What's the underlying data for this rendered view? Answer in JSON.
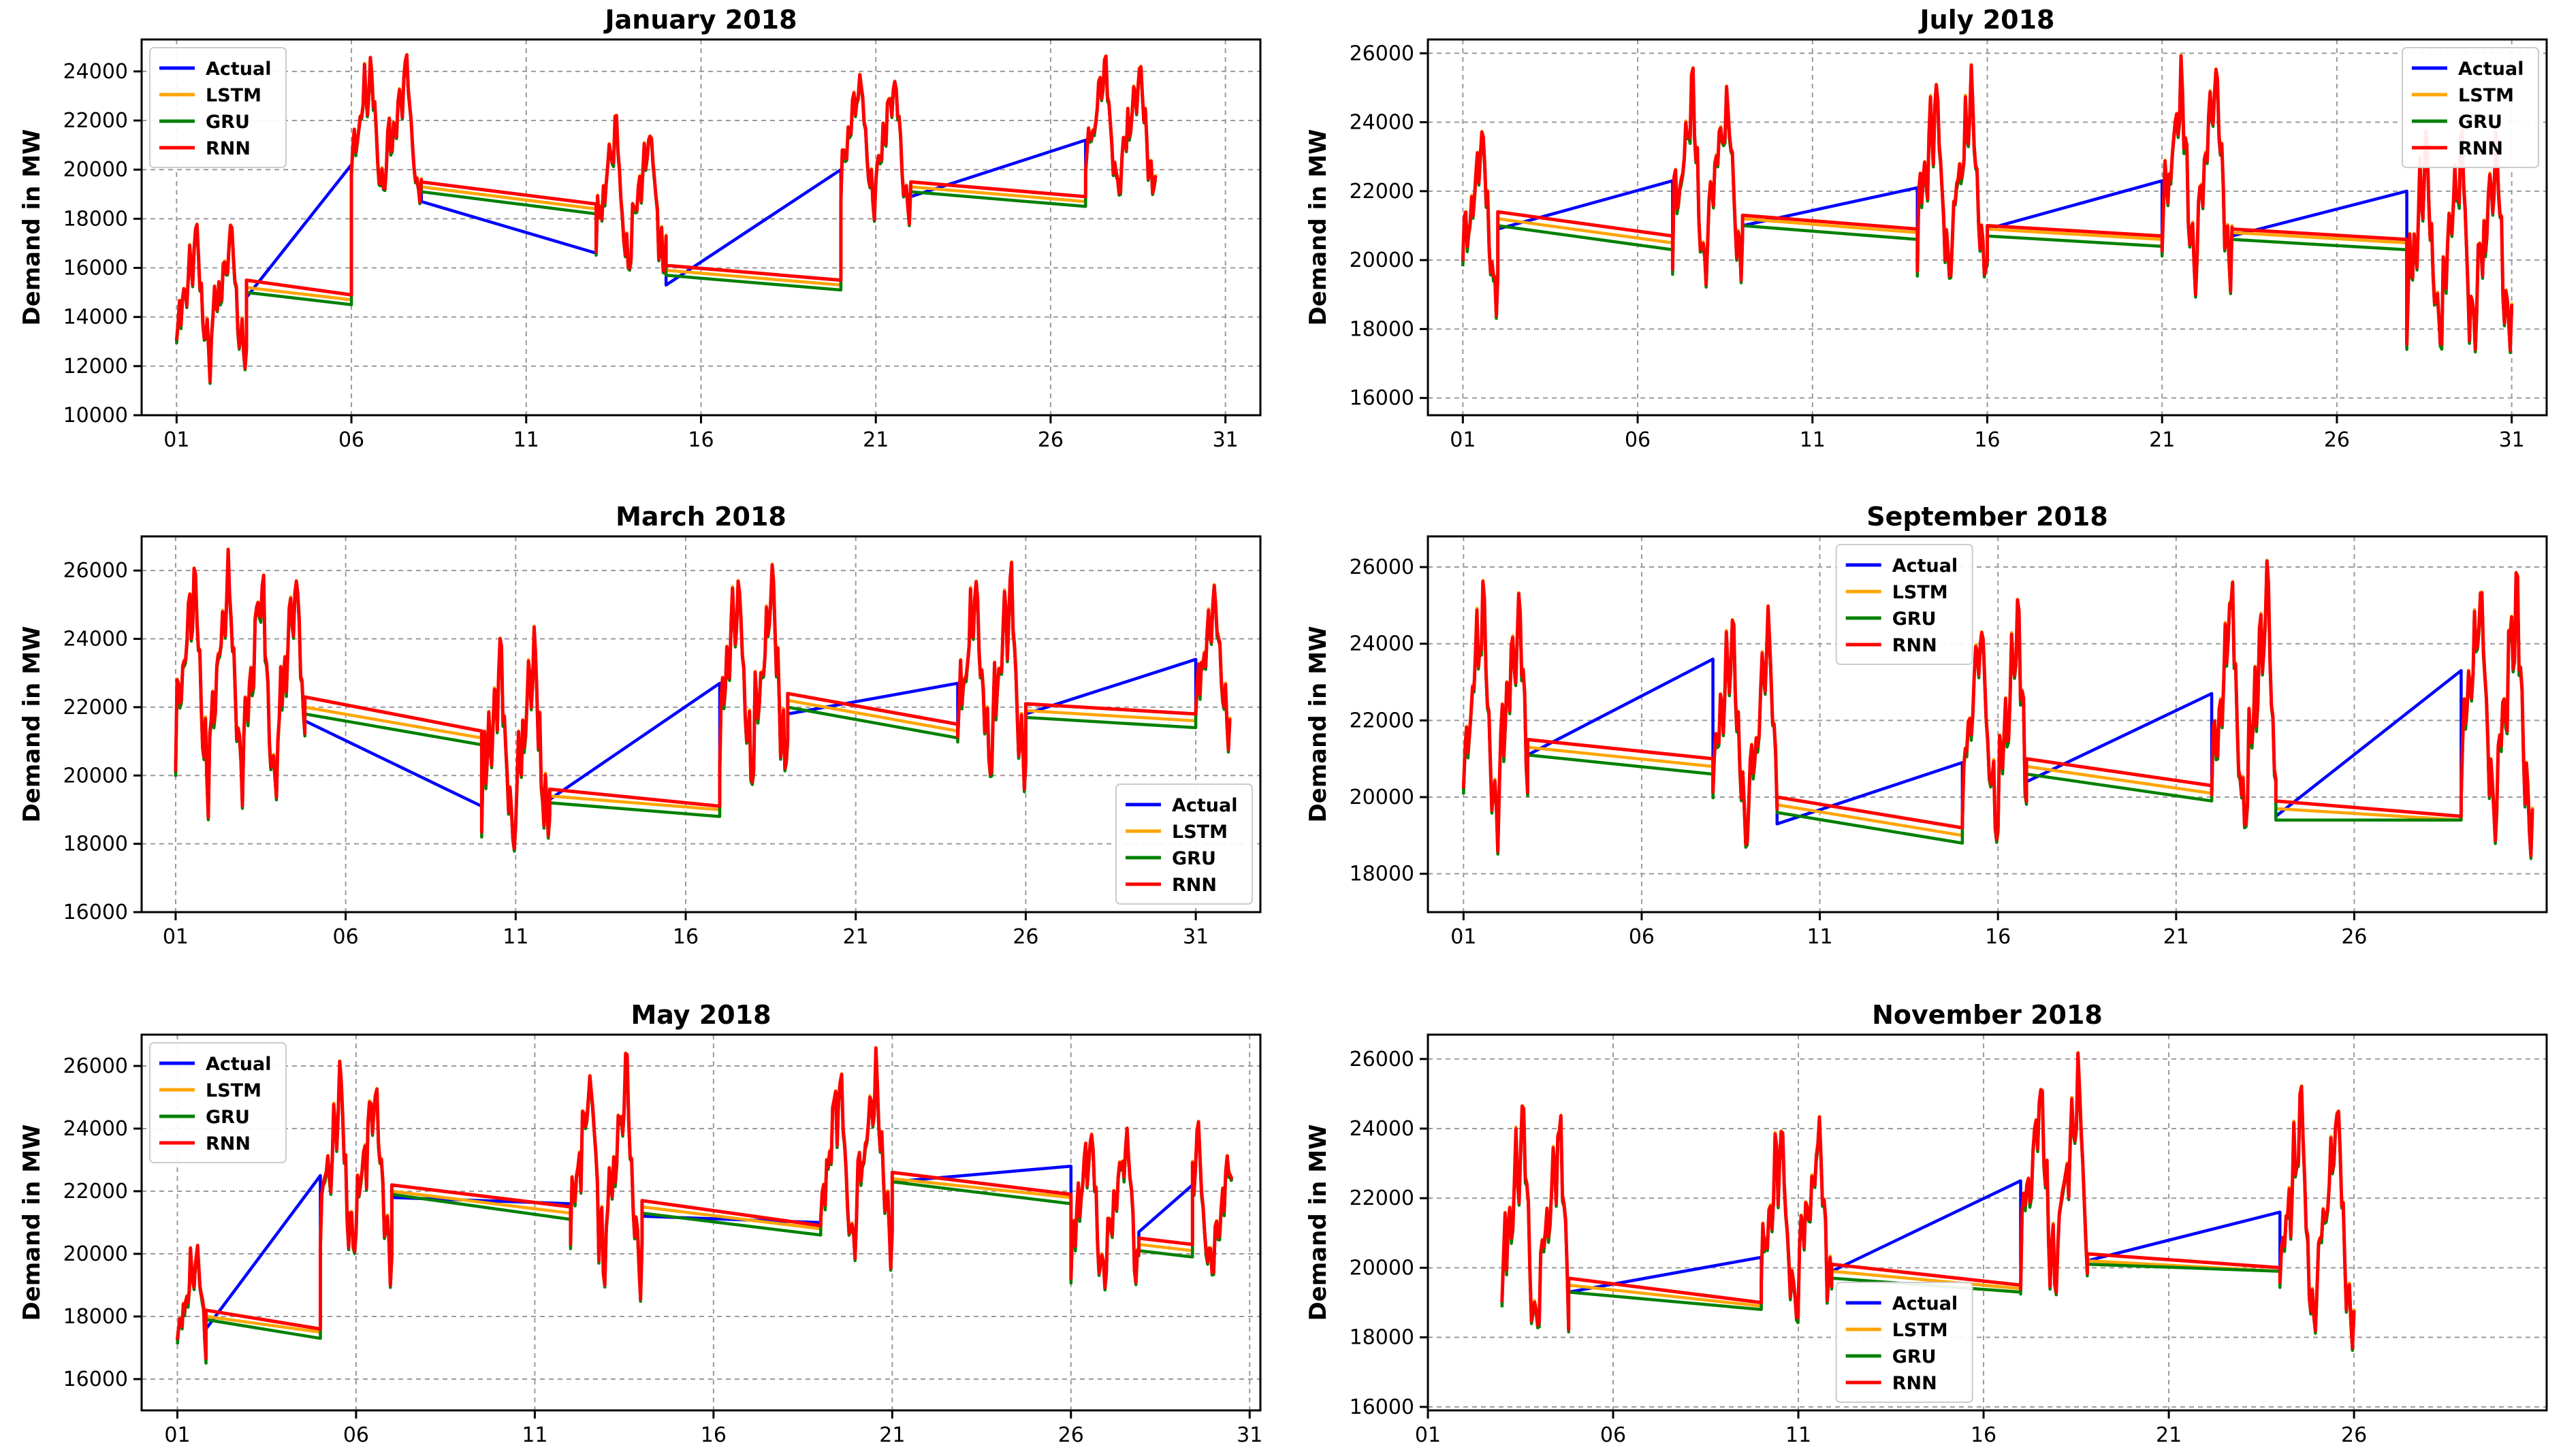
{
  "colors": {
    "Actual": "#0000ff",
    "LSTM": "#ffa500",
    "GRU": "#008000",
    "RNN": "#ff0000"
  },
  "chart_data": [
    {
      "type": "line",
      "title": "January 2018",
      "xlabel": "",
      "ylabel": "Demand in MW",
      "xlim": [
        -1,
        31
      ],
      "ylim": [
        10000,
        25300
      ],
      "xticks": [
        0,
        5,
        10,
        15,
        20,
        25,
        30
      ],
      "xtick_labels": [
        "01",
        "06",
        "11",
        "16",
        "21",
        "26",
        "31"
      ],
      "yticks": [
        10000,
        12000,
        14000,
        16000,
        18000,
        20000,
        22000,
        24000
      ],
      "ytick_labels": [
        "10000",
        "12000",
        "14000",
        "16000",
        "18000",
        "20000",
        "22000",
        "24000"
      ],
      "legend": {
        "entries": [
          "Actual",
          "LSTM",
          "GRU",
          "RNN"
        ],
        "loc": "upper-left"
      },
      "grid": true,
      "segments": [
        [
          0,
          2
        ],
        [
          5,
          7
        ],
        [
          12,
          14
        ],
        [
          19,
          21
        ],
        [
          26,
          28
        ]
      ],
      "gap_levels": {
        "Actual": [
          [
            14800,
            20200
          ],
          [
            18700,
            16600
          ],
          [
            15300,
            20000
          ],
          [
            18900,
            21200
          ]
        ],
        "LSTM": [
          [
            15200,
            14700
          ],
          [
            19300,
            18400
          ],
          [
            15900,
            15300
          ],
          [
            19300,
            18700
          ]
        ],
        "GRU": [
          [
            15000,
            14500
          ],
          [
            19100,
            18200
          ],
          [
            15700,
            15100
          ],
          [
            19100,
            18500
          ]
        ],
        "RNN": [
          [
            15500,
            14900
          ],
          [
            19500,
            18600
          ],
          [
            16100,
            15500
          ],
          [
            19500,
            18900
          ]
        ]
      },
      "segment_ranges": [
        [
          10700,
          18300
        ],
        [
          17400,
          25200
        ],
        [
          14400,
          22600
        ],
        [
          16900,
          24700
        ],
        [
          17600,
          25100
        ]
      ]
    },
    {
      "type": "line",
      "title": "July 2018",
      "xlabel": "",
      "ylabel": "Demand in MW",
      "xlim": [
        -1,
        31
      ],
      "ylim": [
        15500,
        26400
      ],
      "xticks": [
        0,
        5,
        10,
        15,
        20,
        25,
        30
      ],
      "xtick_labels": [
        "01",
        "06",
        "11",
        "16",
        "21",
        "26",
        "31"
      ],
      "yticks": [
        16000,
        18000,
        20000,
        22000,
        24000,
        26000
      ],
      "ytick_labels": [
        "16000",
        "18000",
        "20000",
        "22000",
        "24000",
        "26000"
      ],
      "legend": {
        "entries": [
          "Actual",
          "LSTM",
          "GRU",
          "RNN"
        ],
        "loc": "upper-right"
      },
      "grid": true,
      "segments": [
        [
          0,
          1
        ],
        [
          6,
          8
        ],
        [
          13,
          15
        ],
        [
          20,
          22
        ],
        [
          27,
          30
        ]
      ],
      "gap_levels": {
        "Actual": [
          [
            20900,
            22300
          ],
          [
            21000,
            22100
          ],
          [
            20900,
            22300
          ],
          [
            20700,
            22000
          ]
        ],
        "LSTM": [
          [
            21200,
            20500
          ],
          [
            21200,
            20800
          ],
          [
            20900,
            20600
          ],
          [
            20800,
            20500
          ]
        ],
        "GRU": [
          [
            21000,
            20300
          ],
          [
            21000,
            20600
          ],
          [
            20700,
            20400
          ],
          [
            20600,
            20300
          ]
        ],
        "RNN": [
          [
            21400,
            20700
          ],
          [
            21300,
            20900
          ],
          [
            21000,
            20700
          ],
          [
            20900,
            20600
          ]
        ]
      },
      "segment_ranges": [
        [
          17600,
          24300
        ],
        [
          18200,
          25900
        ],
        [
          18000,
          25800
        ],
        [
          18300,
          26100
        ],
        [
          15900,
          24200
        ]
      ]
    },
    {
      "type": "line",
      "title": "March 2018",
      "xlabel": "",
      "ylabel": "Demand in MW",
      "xlim": [
        -1,
        31.9
      ],
      "ylim": [
        16000,
        27000
      ],
      "xticks": [
        0,
        5,
        10,
        15,
        20,
        25,
        30
      ],
      "xtick_labels": [
        "01",
        "06",
        "11",
        "16",
        "21",
        "26",
        "31"
      ],
      "yticks": [
        16000,
        18000,
        20000,
        22000,
        24000,
        26000
      ],
      "ytick_labels": [
        "16000",
        "18000",
        "20000",
        "22000",
        "24000",
        "26000"
      ],
      "legend": {
        "entries": [
          "Actual",
          "LSTM",
          "GRU",
          "RNN"
        ],
        "loc": "lower-right"
      },
      "grid": true,
      "segments": [
        [
          0,
          3.8
        ],
        [
          9,
          11
        ],
        [
          16,
          18
        ],
        [
          23,
          25
        ],
        [
          30,
          31
        ]
      ],
      "gap_levels": {
        "Actual": [
          [
            21600,
            19100
          ],
          [
            19300,
            22700
          ],
          [
            21800,
            22700
          ],
          [
            21800,
            23400
          ]
        ],
        "LSTM": [
          [
            22000,
            21100
          ],
          [
            19400,
            19000
          ],
          [
            22200,
            21300
          ],
          [
            21900,
            21600
          ]
        ],
        "GRU": [
          [
            21800,
            20900
          ],
          [
            19200,
            18800
          ],
          [
            22000,
            21100
          ],
          [
            21700,
            21400
          ]
        ],
        "RNN": [
          [
            22300,
            21300
          ],
          [
            19600,
            19100
          ],
          [
            22400,
            21500
          ],
          [
            22100,
            21800
          ]
        ]
      },
      "segment_ranges": [
        [
          18000,
          26900
        ],
        [
          16500,
          24600
        ],
        [
          18400,
          26800
        ],
        [
          18300,
          26700
        ],
        [
          20100,
          26000
        ]
      ]
    },
    {
      "type": "line",
      "title": "September 2018",
      "xlabel": "",
      "ylabel": "Demand in MW",
      "xlim": [
        -1,
        30.4
      ],
      "ylim": [
        17000,
        26800
      ],
      "xticks": [
        0,
        5,
        10,
        15,
        20,
        25
      ],
      "xtick_labels": [
        "01",
        "06",
        "11",
        "16",
        "21",
        "26"
      ],
      "yticks": [
        18000,
        20000,
        22000,
        24000,
        26000
      ],
      "ytick_labels": [
        "18000",
        "20000",
        "22000",
        "24000",
        "26000"
      ],
      "legend": {
        "entries": [
          "Actual",
          "LSTM",
          "GRU",
          "RNN"
        ],
        "loc": "upper-center"
      },
      "grid": true,
      "segments": [
        [
          0,
          1.8
        ],
        [
          7,
          8.8
        ],
        [
          14,
          15.8
        ],
        [
          21,
          22.8
        ],
        [
          28,
          30
        ]
      ],
      "gap_levels": {
        "Actual": [
          [
            21100,
            23600
          ],
          [
            19300,
            20900
          ],
          [
            20400,
            22700
          ],
          [
            19500,
            23300
          ]
        ],
        "LSTM": [
          [
            21300,
            20800
          ],
          [
            19800,
            19000
          ],
          [
            20800,
            20100
          ],
          [
            19700,
            19400
          ]
        ],
        "GRU": [
          [
            21100,
            20600
          ],
          [
            19600,
            18800
          ],
          [
            20600,
            19900
          ],
          [
            19400,
            19400
          ]
        ],
        "RNN": [
          [
            21500,
            21000
          ],
          [
            20000,
            19200
          ],
          [
            21000,
            20300
          ],
          [
            19900,
            19500
          ]
        ]
      },
      "segment_ranges": [
        [
          17800,
          26100
        ],
        [
          17500,
          25300
        ],
        [
          17300,
          25600
        ],
        [
          17400,
          26400
        ],
        [
          17400,
          26500
        ]
      ]
    },
    {
      "type": "line",
      "title": "May 2018",
      "xlabel": "",
      "ylabel": "Demand in MW",
      "xlim": [
        -1,
        30.3
      ],
      "ylim": [
        15000,
        27000
      ],
      "xticks": [
        0,
        5,
        10,
        15,
        20,
        25,
        30
      ],
      "xtick_labels": [
        "01",
        "06",
        "11",
        "16",
        "21",
        "26",
        "31"
      ],
      "yticks": [
        16000,
        18000,
        20000,
        22000,
        24000,
        26000
      ],
      "ytick_labels": [
        "16000",
        "18000",
        "20000",
        "22000",
        "24000",
        "26000"
      ],
      "legend": {
        "entries": [
          "Actual",
          "LSTM",
          "GRU",
          "RNN"
        ],
        "loc": "upper-left"
      },
      "grid": true,
      "segments": [
        [
          0,
          0.8
        ],
        [
          4,
          6
        ],
        [
          11,
          13
        ],
        [
          18,
          20
        ],
        [
          25,
          26.9
        ],
        [
          28.4,
          29.5
        ]
      ],
      "gap_levels": {
        "Actual": [
          [
            17600,
            22500
          ],
          [
            21800,
            21600
          ],
          [
            21200,
            21000
          ],
          [
            22300,
            22800
          ],
          [
            20700,
            22200
          ]
        ],
        "LSTM": [
          [
            18000,
            17500
          ],
          [
            22000,
            21300
          ],
          [
            21500,
            20800
          ],
          [
            22400,
            21800
          ],
          [
            20300,
            20100
          ]
        ],
        "GRU": [
          [
            17900,
            17300
          ],
          [
            21900,
            21100
          ],
          [
            21300,
            20600
          ],
          [
            22300,
            21600
          ],
          [
            20100,
            19900
          ]
        ],
        "RNN": [
          [
            18200,
            17600
          ],
          [
            22200,
            21500
          ],
          [
            21700,
            20900
          ],
          [
            22600,
            21900
          ],
          [
            20500,
            20300
          ]
        ]
      },
      "segment_ranges": [
        [
          15300,
          20900
        ],
        [
          18100,
          26300
        ],
        [
          17700,
          26700
        ],
        [
          18300,
          26800
        ],
        [
          17400,
          24800
        ],
        [
          18100,
          24300
        ]
      ]
    },
    {
      "type": "line",
      "title": "November 2018",
      "xlabel": "",
      "ylabel": "Demand in MW",
      "xlim": [
        0,
        30.2
      ],
      "ylim": [
        15900,
        26700
      ],
      "xticks": [
        0,
        5,
        10,
        15,
        20,
        25
      ],
      "xtick_labels": [
        "01",
        "06",
        "11",
        "16",
        "21",
        "26"
      ],
      "yticks": [
        16000,
        18000,
        20000,
        22000,
        24000,
        26000
      ],
      "ytick_labels": [
        "16000",
        "18000",
        "20000",
        "22000",
        "24000",
        "26000"
      ],
      "legend": {
        "entries": [
          "Actual",
          "LSTM",
          "GRU",
          "RNN"
        ],
        "loc": "lower-center"
      },
      "grid": true,
      "segments": [
        [
          2,
          3.8
        ],
        [
          9,
          10.9
        ],
        [
          16,
          17.8
        ],
        [
          23,
          25
        ]
      ],
      "gap_levels": {
        "Actual": [
          [
            19300,
            20300
          ],
          [
            19900,
            22500
          ],
          [
            20200,
            21600
          ]
        ],
        "LSTM": [
          [
            19500,
            18900
          ],
          [
            19900,
            19400
          ],
          [
            20200,
            19900
          ]
        ],
        "GRU": [
          [
            19300,
            18800
          ],
          [
            19700,
            19300
          ],
          [
            20100,
            19900
          ]
        ],
        "RNN": [
          [
            19700,
            19000
          ],
          [
            20100,
            19500
          ],
          [
            20400,
            20000
          ]
        ]
      },
      "segment_ranges": [
        [
          16400,
          25200
        ],
        [
          17000,
          24800
        ],
        [
          17600,
          26300
        ],
        [
          16500,
          25700
        ]
      ]
    }
  ]
}
